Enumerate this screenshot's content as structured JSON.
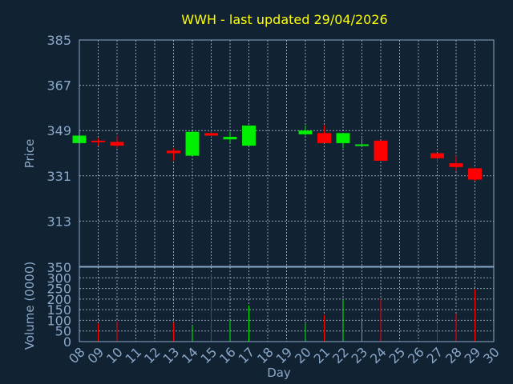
{
  "chart_data": [
    {
      "type": "candlestick",
      "title": "WWH - last updated 29/04/2026",
      "ylabel": "Price",
      "ylim": [
        295,
        385
      ],
      "yticks": [
        385,
        367,
        349,
        331,
        313
      ],
      "grid": true,
      "candles": [
        {
          "day": 8,
          "open": 344.0,
          "close": 347.0,
          "high": 347.0,
          "low": 344.0
        },
        {
          "day": 9,
          "open": 345.0,
          "close": 344.5,
          "high": 346.0,
          "low": 343.0
        },
        {
          "day": 10,
          "open": 344.5,
          "close": 343.0,
          "high": 347.0,
          "low": 342.0
        },
        {
          "day": 13,
          "open": 341.0,
          "close": 340.0,
          "high": 342.0,
          "low": 337.0
        },
        {
          "day": 14,
          "open": 339.0,
          "close": 348.5,
          "high": 349.0,
          "low": 339.0
        },
        {
          "day": 15,
          "open": 348.0,
          "close": 347.0,
          "high": 349.0,
          "low": 346.5
        },
        {
          "day": 16,
          "open": 345.5,
          "close": 346.5,
          "high": 348.5,
          "low": 344.0
        },
        {
          "day": 17,
          "open": 343.0,
          "close": 351.0,
          "high": 351.0,
          "low": 343.0
        },
        {
          "day": 20,
          "open": 347.5,
          "close": 349.0,
          "high": 351.0,
          "low": 347.0
        },
        {
          "day": 21,
          "open": 348.0,
          "close": 344.0,
          "high": 351.0,
          "low": 344.0
        },
        {
          "day": 22,
          "open": 344.0,
          "close": 348.0,
          "high": 348.0,
          "low": 342.0
        },
        {
          "day": 23,
          "open": 343.0,
          "close": 343.5,
          "high": 346.0,
          "low": 342.5
        },
        {
          "day": 24,
          "open": 345.0,
          "close": 337.0,
          "high": 345.0,
          "low": 337.0
        },
        {
          "day": 27,
          "open": 340.0,
          "close": 338.0,
          "high": 340.0,
          "low": 336.0
        },
        {
          "day": 28,
          "open": 336.0,
          "close": 334.5,
          "high": 339.0,
          "low": 333.0
        },
        {
          "day": 29,
          "open": 334.0,
          "close": 329.5,
          "high": 334.0,
          "low": 329.0
        }
      ],
      "up_color": "#00ee00",
      "down_color": "#ff0000"
    },
    {
      "type": "bar",
      "ylabel": "Volume (0000)",
      "xlabel": "Day",
      "ylim": [
        0,
        350
      ],
      "yticks": [
        350,
        300,
        250,
        200,
        150,
        100,
        50,
        0
      ],
      "grid": true,
      "categories": [
        "08",
        "09",
        "10",
        "11",
        "12",
        "13",
        "14",
        "15",
        "16",
        "17",
        "18",
        "19",
        "20",
        "21",
        "22",
        "23",
        "24",
        "25",
        "26",
        "27",
        "28",
        "29",
        "30"
      ],
      "bars": [
        {
          "day": 9,
          "value": 85,
          "direction": "down"
        },
        {
          "day": 10,
          "value": 95,
          "direction": "down"
        },
        {
          "day": 13,
          "value": 90,
          "direction": "down"
        },
        {
          "day": 14,
          "value": 75,
          "direction": "up"
        },
        {
          "day": 15,
          "value": 320,
          "direction": "down"
        },
        {
          "day": 16,
          "value": 100,
          "direction": "up"
        },
        {
          "day": 17,
          "value": 170,
          "direction": "up"
        },
        {
          "day": 20,
          "value": 85,
          "direction": "up"
        },
        {
          "day": 21,
          "value": 125,
          "direction": "down"
        },
        {
          "day": 22,
          "value": 200,
          "direction": "up"
        },
        {
          "day": 23,
          "value": 100,
          "direction": "up"
        },
        {
          "day": 24,
          "value": 200,
          "direction": "down"
        },
        {
          "day": 27,
          "value": 85,
          "direction": "down"
        },
        {
          "day": 28,
          "value": 130,
          "direction": "down"
        },
        {
          "day": 29,
          "value": 245,
          "direction": "down"
        }
      ]
    }
  ]
}
